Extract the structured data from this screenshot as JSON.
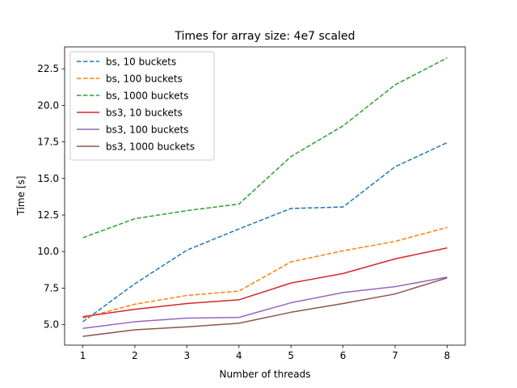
{
  "chart_data": {
    "type": "line",
    "title": "Times for array size: 4e7 scaled",
    "xlabel": "Number of threads",
    "ylabel": "Time [s]",
    "x": [
      1,
      2,
      3,
      4,
      5,
      6,
      7,
      8
    ],
    "xlim": [
      0.65,
      8.35
    ],
    "ylim": [
      3.6,
      24.0
    ],
    "xticks": [
      1,
      2,
      3,
      4,
      5,
      6,
      7,
      8
    ],
    "yticks": [
      5.0,
      7.5,
      10.0,
      12.5,
      15.0,
      17.5,
      20.0,
      22.5
    ],
    "ytick_labels": [
      "5.0",
      "7.5",
      "10.0",
      "12.5",
      "15.0",
      "17.5",
      "20.0",
      "22.5"
    ],
    "grid": false,
    "legend_position": "top-left",
    "series": [
      {
        "name": "bs, 10 buckets",
        "color": "#1f77b4",
        "dash": true,
        "values": [
          5.2,
          7.8,
          10.1,
          11.55,
          12.95,
          13.05,
          15.8,
          17.45
        ]
      },
      {
        "name": "bs, 100 buckets",
        "color": "#ff7f0e",
        "dash": true,
        "values": [
          5.45,
          6.4,
          7.0,
          7.3,
          9.3,
          10.05,
          10.7,
          11.65
        ]
      },
      {
        "name": "bs, 1000 buckets",
        "color": "#2ca02c",
        "dash": true,
        "values": [
          10.95,
          12.25,
          12.8,
          13.25,
          16.5,
          18.6,
          21.4,
          23.25
        ]
      },
      {
        "name": "bs3, 10 buckets",
        "color": "#d62728",
        "dash": false,
        "values": [
          5.55,
          6.05,
          6.45,
          6.7,
          7.85,
          8.5,
          9.5,
          10.25
        ]
      },
      {
        "name": "bs3, 100 buckets",
        "color": "#9467bd",
        "dash": false,
        "values": [
          4.75,
          5.2,
          5.45,
          5.5,
          6.5,
          7.2,
          7.6,
          8.25
        ]
      },
      {
        "name": "bs3, 1000 buckets",
        "color": "#8c564b",
        "dash": false,
        "values": [
          4.2,
          4.65,
          4.85,
          5.1,
          5.85,
          6.45,
          7.1,
          8.2
        ]
      }
    ]
  }
}
